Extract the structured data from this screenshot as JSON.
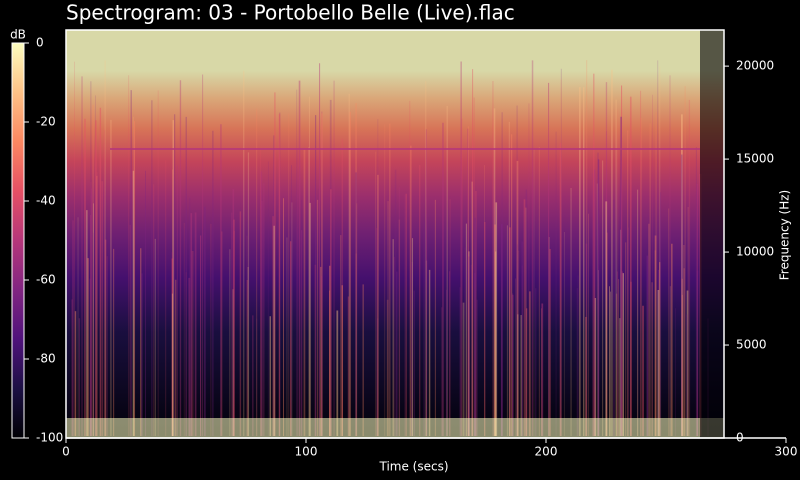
{
  "chart_data": {
    "type": "spectrogram",
    "title": "Spectrogram: 03 - Portobello Belle (Live).flac",
    "x_label": "Time (secs)",
    "y_label": "Frequency (Hz)",
    "xlim": [
      0,
      300
    ],
    "xticks": [
      0,
      100,
      200,
      300
    ],
    "ylim": [
      0,
      22050
    ],
    "yticks": [
      0,
      5000,
      10000,
      15000,
      20000
    ],
    "colorbar": {
      "label": "dB",
      "lim": [
        -100,
        0
      ],
      "ticks": [
        0,
        -20,
        -40,
        -60,
        -80,
        -100
      ]
    },
    "colormap": [
      "#000004",
      "#1c1044",
      "#4f127b",
      "#812581",
      "#b5367a",
      "#e55064",
      "#fb8761",
      "#fec287",
      "#fcfdbf"
    ]
  }
}
